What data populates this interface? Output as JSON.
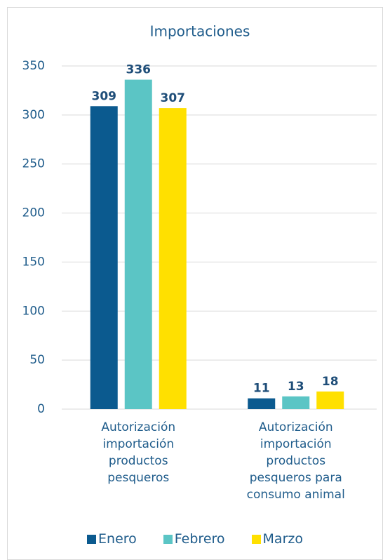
{
  "chart_data": {
    "type": "bar",
    "title": "Importaciones",
    "categories": [
      "Autorización importación productos pesqueros",
      "Autorización importación productos pesqueros para consumo animal"
    ],
    "series": [
      {
        "name": "Enero",
        "color": "#0b5a8f",
        "values": [
          309,
          11
        ]
      },
      {
        "name": "Febrero",
        "color": "#5bc5c5",
        "values": [
          336,
          13
        ]
      },
      {
        "name": "Marzo",
        "color": "#ffe000",
        "values": [
          307,
          18
        ]
      }
    ],
    "ylim": [
      0,
      350
    ],
    "yticks": [
      0,
      50,
      100,
      150,
      200,
      250,
      300,
      350
    ],
    "grid": true,
    "legend": "bottom"
  }
}
